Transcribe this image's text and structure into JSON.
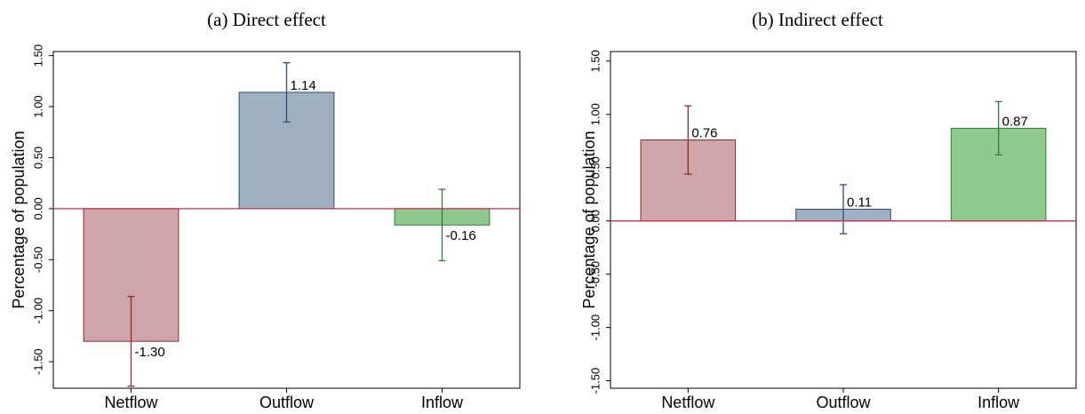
{
  "chart_data": [
    {
      "type": "bar",
      "title": "(a) Direct effect",
      "ylabel": "Percentage of population",
      "categories": [
        "Netflow",
        "Outflow",
        "Inflow"
      ],
      "values": [
        -1.3,
        1.14,
        -0.16
      ],
      "value_labels": [
        "-1.30",
        "1.14",
        "-0.16"
      ],
      "errors": [
        0.44,
        0.29,
        0.35
      ],
      "colors": [
        "#cfa5aa",
        "#9fb0c2",
        "#8fc98e"
      ],
      "edge_colors": [
        "#8c2a2e",
        "#2f4c78",
        "#2e7d32"
      ],
      "zero_line_color": "#c8304f",
      "ylim": [
        -1.76,
        1.54
      ],
      "yticks": [
        {
          "value": -1.5,
          "label": "-1.50"
        },
        {
          "value": -1.0,
          "label": "-1.00"
        },
        {
          "value": -0.5,
          "label": "-0.50"
        },
        {
          "value": 0,
          "label": "0.00"
        },
        {
          "value": 0.5,
          "label": "0.50"
        },
        {
          "value": 1.0,
          "label": "1.00"
        },
        {
          "value": 1.5,
          "label": "1.50"
        }
      ]
    },
    {
      "type": "bar",
      "title": "(b) Indirect effect",
      "ylabel": "Percentage of population",
      "categories": [
        "Netflow",
        "Outflow",
        "Inflow"
      ],
      "values": [
        0.76,
        0.11,
        0.87
      ],
      "value_labels": [
        "0.76",
        "0.11",
        "0.87"
      ],
      "errors": [
        0.32,
        0.23,
        0.25
      ],
      "colors": [
        "#cfa5aa",
        "#9fb0c2",
        "#8fc98e"
      ],
      "edge_colors": [
        "#8c2a2e",
        "#2f4c78",
        "#2e7d32"
      ],
      "zero_line_color": "#c8304f",
      "ylim": [
        -1.57,
        1.59
      ],
      "yticks": [
        {
          "value": -1.5,
          "label": "-1.50"
        },
        {
          "value": -1.0,
          "label": "-1.00"
        },
        {
          "value": -0.5,
          "label": "-0.50"
        },
        {
          "value": 0,
          "label": "0.00"
        },
        {
          "value": 0.5,
          "label": "0.50"
        },
        {
          "value": 1.0,
          "label": "1.00"
        },
        {
          "value": 1.5,
          "label": "1.50"
        }
      ]
    }
  ]
}
